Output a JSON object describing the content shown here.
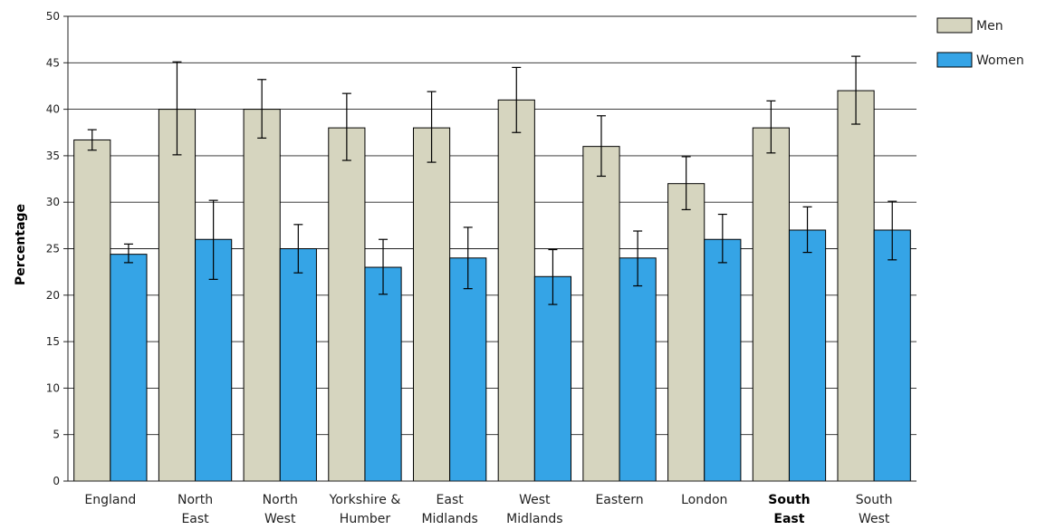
{
  "chart_data": {
    "type": "bar",
    "ylabel": "Percentage",
    "ylim": [
      0,
      50
    ],
    "yticks": [
      0,
      5,
      10,
      15,
      20,
      25,
      30,
      35,
      40,
      45,
      50
    ],
    "grid": true,
    "legend_position": "top-right",
    "categories": [
      {
        "line1": "England",
        "line2": "",
        "bold": false
      },
      {
        "line1": "North",
        "line2": "East",
        "bold": false
      },
      {
        "line1": "North",
        "line2": "West",
        "bold": false
      },
      {
        "line1": "Yorkshire &",
        "line2": "Humber",
        "bold": false
      },
      {
        "line1": "East",
        "line2": "Midlands",
        "bold": false
      },
      {
        "line1": "West",
        "line2": "Midlands",
        "bold": false
      },
      {
        "line1": "Eastern",
        "line2": "",
        "bold": false
      },
      {
        "line1": "London",
        "line2": "",
        "bold": false
      },
      {
        "line1": "South",
        "line2": "East",
        "bold": true
      },
      {
        "line1": "South",
        "line2": "West",
        "bold": false
      }
    ],
    "series": [
      {
        "name": "Men",
        "color": "#d6d5bf",
        "values": [
          36.7,
          40,
          40,
          38,
          38,
          41,
          36,
          32,
          38,
          42
        ],
        "error_low": [
          35.6,
          35.1,
          36.9,
          34.5,
          34.3,
          37.5,
          32.8,
          29.2,
          35.3,
          38.4
        ],
        "error_high": [
          37.8,
          45.1,
          43.2,
          41.7,
          41.9,
          44.5,
          39.3,
          34.9,
          40.9,
          45.7
        ]
      },
      {
        "name": "Women",
        "color": "#35a4e6",
        "values": [
          24.4,
          26,
          25,
          23,
          24,
          22,
          24,
          26,
          27,
          27
        ],
        "error_low": [
          23.5,
          21.7,
          22.4,
          20.1,
          20.7,
          19,
          21,
          23.5,
          24.6,
          23.8
        ],
        "error_high": [
          25.5,
          30.2,
          27.6,
          26,
          27.3,
          24.9,
          26.9,
          28.7,
          29.5,
          30.1
        ]
      }
    ]
  }
}
